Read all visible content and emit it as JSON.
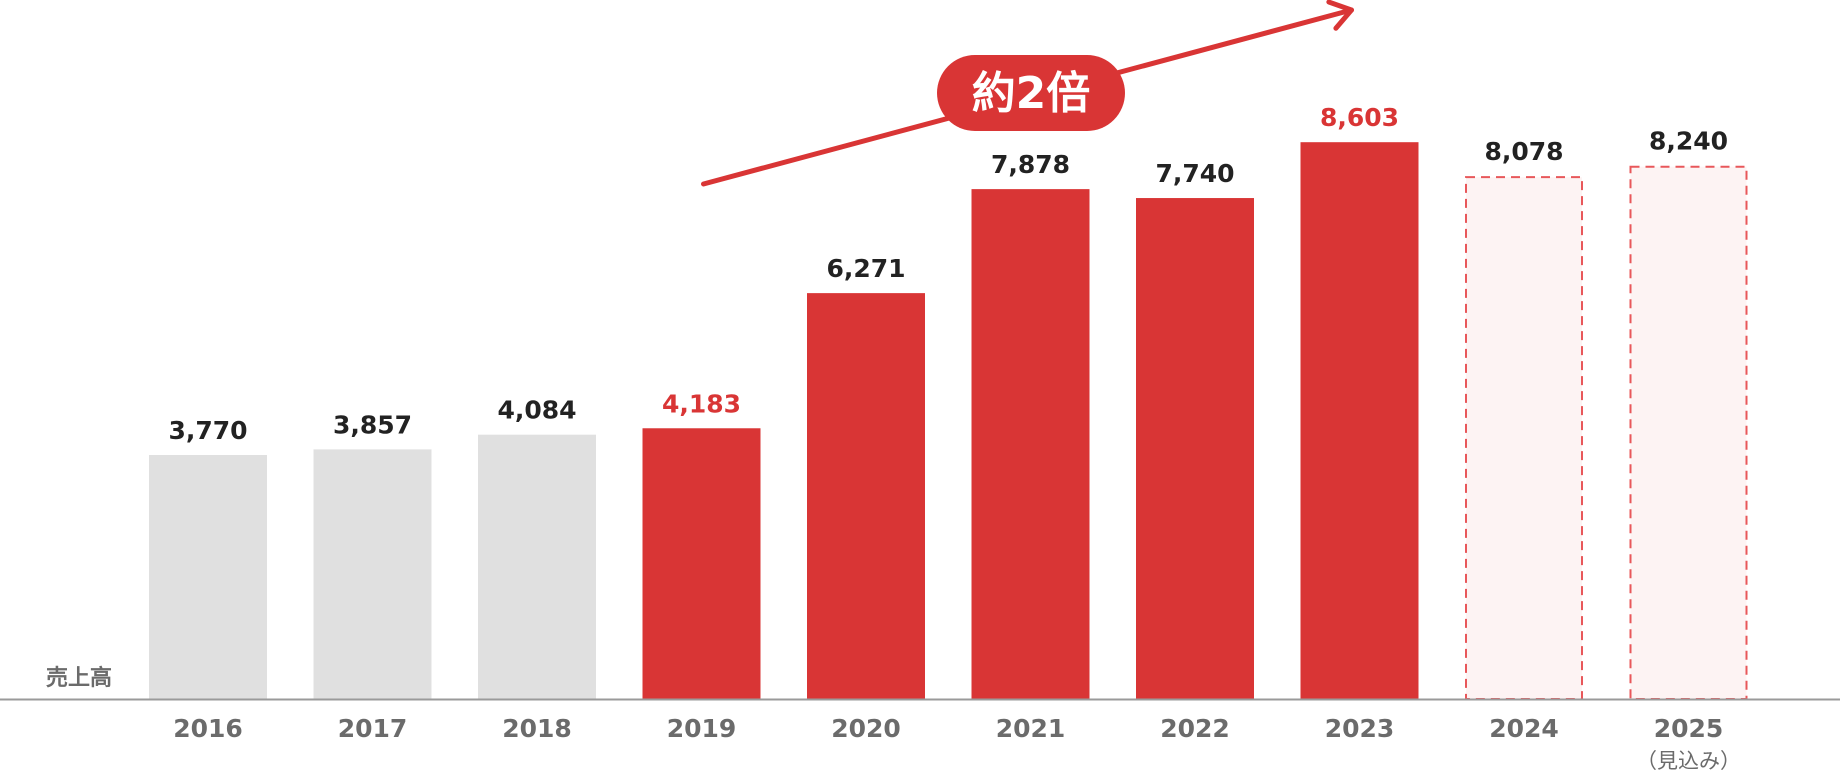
{
  "chart_data": {
    "type": "bar",
    "ylabel": "売上高",
    "categories": [
      "2016",
      "2017",
      "2018",
      "2019",
      "2020",
      "2021",
      "2022",
      "2023",
      "2024",
      "2025"
    ],
    "category_sublabels": [
      "",
      "",
      "",
      "",
      "",
      "",
      "",
      "",
      "",
      "（見込み）"
    ],
    "values": [
      3770,
      3857,
      4084,
      4183,
      6271,
      7878,
      7740,
      8603,
      8078,
      8240
    ],
    "value_labels": [
      "3,770",
      "3,857",
      "4,084",
      "4,183",
      "6,271",
      "7,878",
      "7,740",
      "8,603",
      "8,078",
      "8,240"
    ],
    "bar_styles": [
      "gray",
      "gray",
      "gray",
      "highlight",
      "red",
      "red",
      "red",
      "highlight",
      "dashed",
      "dashed"
    ],
    "ylim": [
      0,
      10800
    ],
    "grid": false,
    "annotation": {
      "text": "約2倍",
      "type": "trend-arrow",
      "from_category": "2019",
      "to_category": "2023"
    },
    "colors": {
      "gray": "#e0e0e0",
      "red": "#d93535",
      "dashed_fill": "#fdf3f3",
      "dashed_stroke": "#e8575a",
      "label_dark": "#222222",
      "label_red": "#d93535",
      "axis": "#9a9a9a"
    }
  }
}
